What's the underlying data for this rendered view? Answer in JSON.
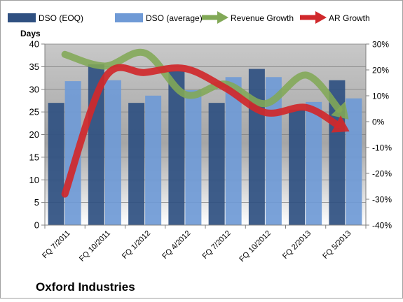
{
  "chart_data": {
    "type": "bar",
    "title": "Oxford Industries",
    "ylabel": "Days",
    "y2label": "",
    "ylim": [
      0,
      40
    ],
    "y2lim": [
      -40,
      30
    ],
    "yticks": [
      "0",
      "5",
      "10",
      "15",
      "20",
      "25",
      "30",
      "35",
      "40"
    ],
    "y2ticks": [
      "-40%",
      "-30%",
      "-20%",
      "-10%",
      "0%",
      "10%",
      "20%",
      "30%"
    ],
    "grid": true,
    "legend_position": "top",
    "categories": [
      "FQ 7/2011",
      "FQ 10/2011",
      "FQ 1/2012",
      "FQ 4/2012",
      "FQ 7/2012",
      "FQ 10/2012",
      "FQ 2/2013",
      "FQ 5/2013"
    ],
    "bar_series": [
      {
        "name": "DSO (EOQ)",
        "color": "#2f5081",
        "values": [
          27,
          35.5,
          27,
          34,
          27,
          34.5,
          25.5,
          32
        ]
      },
      {
        "name": "DSO (average)",
        "color": "#6f9ad6",
        "values": [
          31.8,
          32,
          28.6,
          29.8,
          32.7,
          32.7,
          27.2,
          28
        ]
      }
    ],
    "line_series": [
      {
        "name": "Revenue Growth",
        "color": "#82a957",
        "axis": "right",
        "values": [
          26,
          21.5,
          26.5,
          10.5,
          14.5,
          7,
          18,
          2
        ]
      },
      {
        "name": "AR Growth",
        "color": "#d0282b",
        "axis": "right",
        "values": [
          -28,
          17,
          19,
          20.5,
          13,
          3.5,
          5.5,
          -3
        ]
      }
    ],
    "colors": {
      "plot_top": "#c8c8c8",
      "plot_mid": "#a6a6a6",
      "plot_bottom": "#ffffff",
      "border": "#a0a0a0"
    }
  }
}
